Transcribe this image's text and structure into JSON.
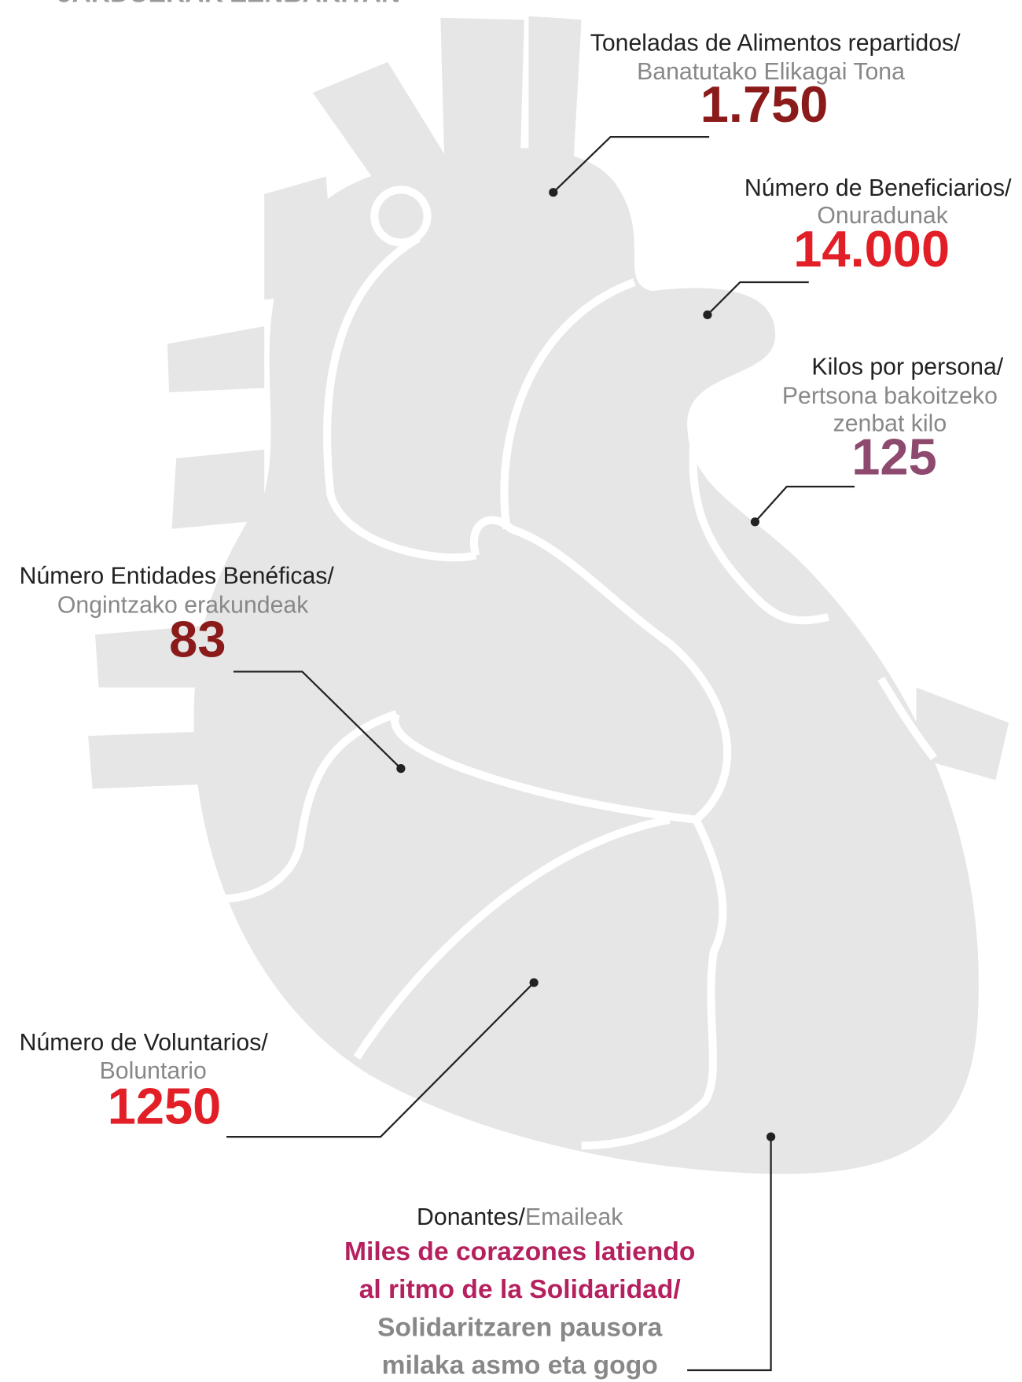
{
  "header": {
    "title": "JARDUERAK ZENBAKITAN"
  },
  "callouts": [
    {
      "label": "Toneladas de Alimentos repartidos/",
      "sublabel": [
        "Banatutako Elikagai Tona"
      ],
      "value": "1.750"
    },
    {
      "label": "Número de Beneficiarios/",
      "sublabel": [
        "Onuradunak"
      ],
      "value": "14.000"
    },
    {
      "label": "Kilos por persona/",
      "sublabel": [
        "Pertsona bakoitzeko",
        "zenbat kilo"
      ],
      "value": "125"
    },
    {
      "label": "Número Entidades Benéficas/",
      "sublabel": [
        "Ongintzako erakundeak"
      ],
      "value": "83"
    },
    {
      "label": "Número de Voluntarios/",
      "sublabel": [
        "Boluntario"
      ],
      "value": "1250"
    }
  ],
  "donors": {
    "label": "Donantes/",
    "sublabel": "Emaileak",
    "lines": [
      "Miles de corazones latiendo",
      "al ritmo de la Solidaridad/",
      "Solidaritzaren pausora",
      "milaka asmo eta gogo"
    ]
  }
}
